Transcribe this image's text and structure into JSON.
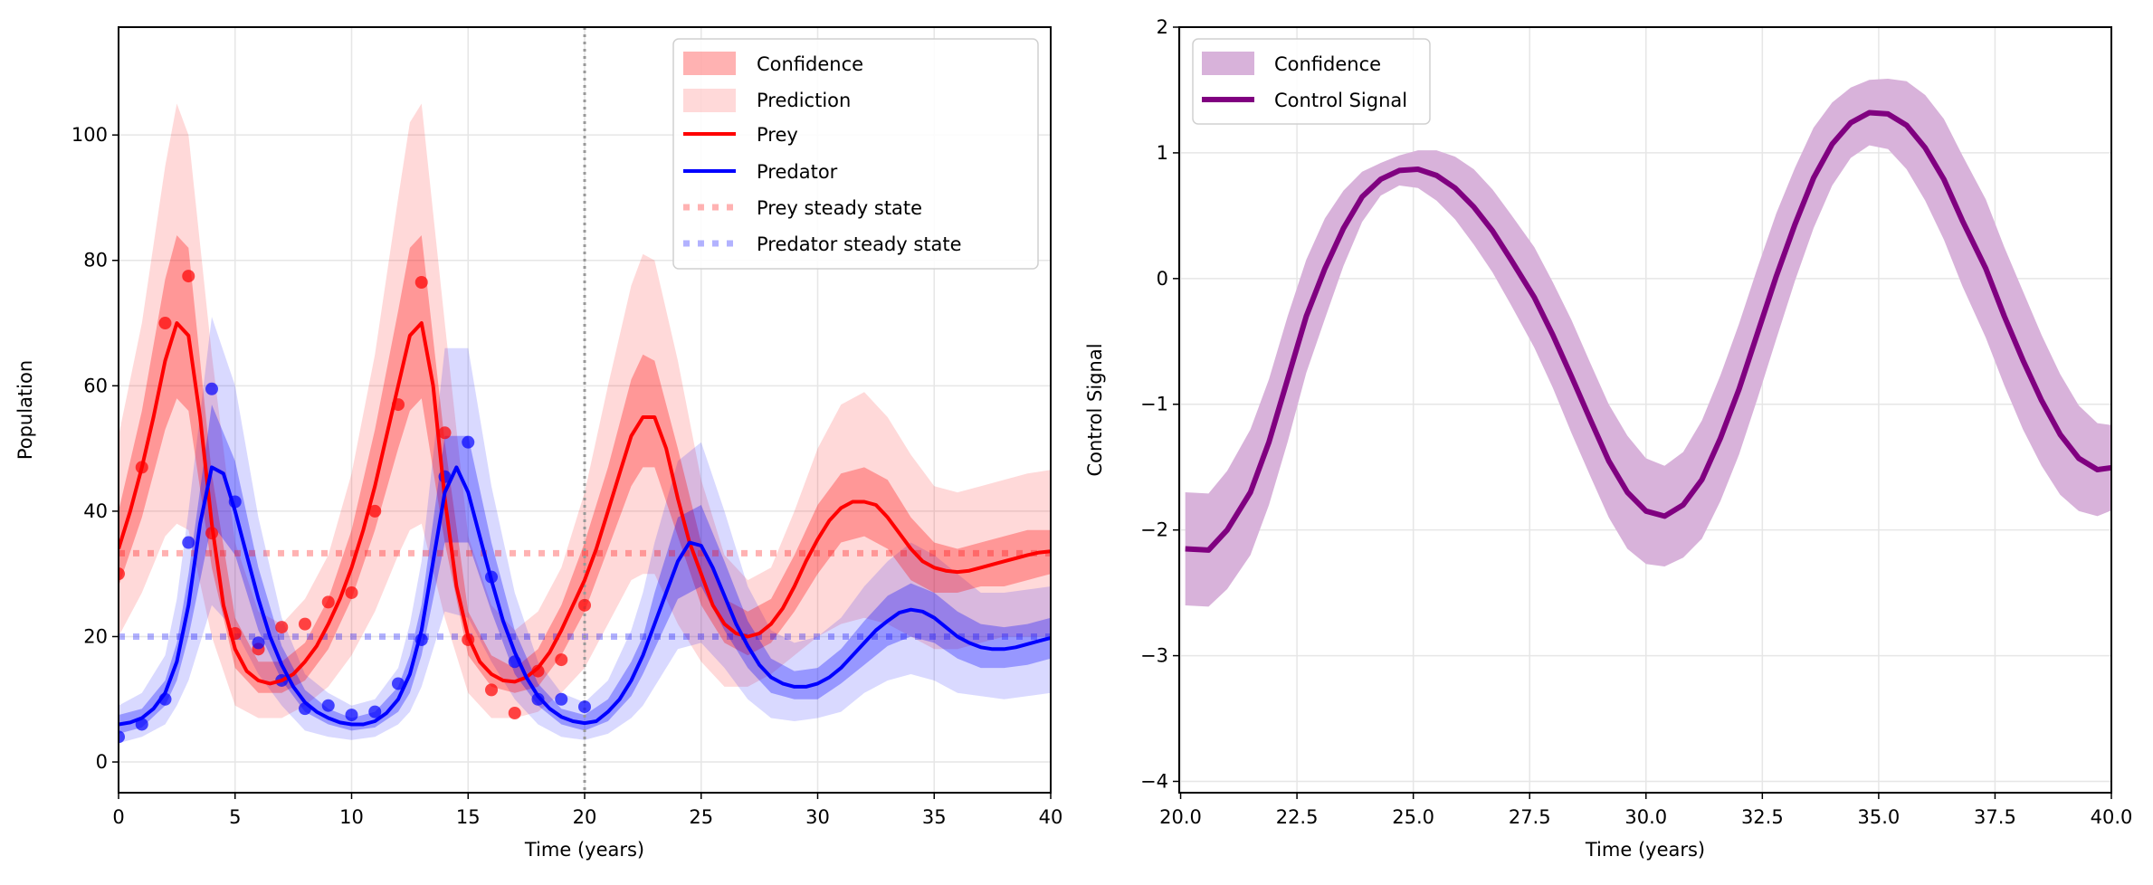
{
  "chart_data": [
    {
      "type": "line",
      "xlabel": "Time (years)",
      "ylabel": "Population",
      "xlim": [
        0,
        40
      ],
      "ylim": [
        -4.9,
        117.2
      ],
      "grid": true,
      "legend_placement": "top-right",
      "xticks": [
        "0",
        "5",
        "10",
        "15",
        "20",
        "25",
        "30",
        "35",
        "40"
      ],
      "xtick_values": [
        0,
        5,
        10,
        15,
        20,
        25,
        30,
        35,
        40
      ],
      "yticks": [
        "0",
        "20",
        "40",
        "60",
        "80",
        "100"
      ],
      "ytick_values": [
        0,
        20,
        40,
        60,
        80,
        100
      ],
      "vertical_marker": {
        "x": 20,
        "color": "#999999",
        "style": "dotted"
      },
      "legend": [
        "Confidence",
        "Prediction",
        "Prey",
        "Predator",
        "Prey steady state",
        "Predator steady state"
      ],
      "colors": {
        "prey": "#ff0000",
        "predator": "#0000ff",
        "prey_ss": "#ffb3b3",
        "predator_ss": "#b3b3ff"
      },
      "steady_states": {
        "prey": 33.3,
        "predator": 20
      },
      "t": [
        0,
        0.5,
        1,
        1.5,
        2,
        2.5,
        3,
        3.5,
        4,
        4.5,
        5,
        5.5,
        6,
        6.5,
        7,
        7.5,
        8,
        8.5,
        9,
        9.5,
        10,
        10.5,
        11,
        11.5,
        12,
        12.5,
        13,
        13.5,
        14,
        14.5,
        15,
        15.5,
        16,
        16.5,
        17,
        17.5,
        18,
        18.5,
        19,
        19.5,
        20,
        20.5,
        21,
        21.5,
        22,
        22.5,
        23,
        23.5,
        24,
        24.5,
        25,
        25.5,
        26,
        26.5,
        27,
        27.5,
        28,
        28.5,
        29,
        29.5,
        30,
        30.5,
        31,
        31.5,
        32,
        32.5,
        33,
        33.5,
        34,
        34.5,
        35,
        35.5,
        36,
        36.5,
        37,
        37.5,
        38,
        38.5,
        39,
        39.5,
        40
      ],
      "series": [
        {
          "name": "Prey",
          "values": [
            34,
            40,
            47,
            55,
            64,
            70,
            68,
            55,
            38,
            25,
            18,
            14.5,
            13,
            12.5,
            13,
            14,
            16,
            18.5,
            22,
            26,
            31,
            37,
            44,
            52,
            60,
            68,
            70,
            60,
            42,
            28,
            20,
            16,
            14,
            13,
            12.8,
            13.5,
            15,
            17.5,
            21,
            25,
            29,
            34,
            40,
            46,
            52,
            55,
            55,
            50,
            42,
            35,
            30,
            25,
            22,
            20.5,
            20,
            20.5,
            22,
            24.5,
            28,
            32,
            35.5,
            38.5,
            40.5,
            41.5,
            41.5,
            41,
            39,
            36.5,
            34,
            32,
            31,
            30.5,
            30.3,
            30.5,
            31,
            31.5,
            32,
            32.5,
            33,
            33.4,
            33.6
          ]
        },
        {
          "name": "Predator",
          "values": [
            6,
            6.3,
            7,
            8.5,
            11,
            16,
            25,
            38,
            47,
            46,
            40,
            33,
            26,
            20,
            15.5,
            12,
            9.5,
            8,
            7,
            6.3,
            6,
            6,
            6.5,
            7.8,
            10,
            14,
            21,
            32,
            43,
            47,
            43,
            36,
            29,
            22.5,
            17.5,
            13.5,
            10.5,
            8.5,
            7.2,
            6.5,
            6.2,
            6.5,
            8,
            10,
            13,
            17,
            22,
            27,
            32,
            35,
            34.5,
            31,
            26.5,
            22,
            18.5,
            15.5,
            13.5,
            12.5,
            12,
            12,
            12.5,
            13.5,
            15,
            17,
            19,
            21,
            22.5,
            23.8,
            24.3,
            24,
            23,
            21.5,
            20,
            19,
            18.3,
            18,
            18,
            18.3,
            18.8,
            19.3,
            19.8
          ]
        }
      ],
      "band_t": [
        0,
        1,
        2,
        2.5,
        3,
        4,
        5,
        6,
        7,
        8,
        9,
        10,
        11,
        12,
        12.5,
        13,
        14,
        15,
        16,
        17,
        18,
        19,
        20,
        21,
        22,
        22.5,
        23,
        24,
        25,
        26,
        27,
        28,
        29,
        30,
        31,
        32,
        33,
        34,
        35,
        36,
        37,
        38,
        39,
        40
      ],
      "bands": {
        "prey_confidence": {
          "lower": [
            28,
            39,
            53,
            58,
            56,
            31,
            15,
            11,
            11,
            13,
            18,
            26,
            37,
            50,
            56,
            58,
            35,
            17,
            12,
            11,
            12,
            17,
            24,
            34,
            44,
            47,
            47,
            36,
            25,
            19,
            17,
            19,
            24,
            30,
            35,
            36,
            34,
            29,
            27,
            27,
            28,
            28,
            29,
            30
          ],
          "upper": [
            40,
            56,
            77,
            84,
            82,
            46,
            23,
            16,
            16,
            19,
            26,
            37,
            53,
            72,
            82,
            84,
            51,
            24,
            17,
            15,
            18,
            25,
            35,
            47,
            61,
            65,
            64,
            50,
            35,
            26,
            24,
            26,
            33,
            41,
            46,
            47,
            45,
            39,
            35,
            34,
            35,
            36,
            37,
            37
          ]
        },
        "prey_prediction": {
          "lower": [
            20,
            27,
            36,
            38,
            37,
            20,
            9,
            7,
            7,
            9,
            12,
            17,
            24,
            33,
            37,
            38,
            23,
            11,
            7,
            7,
            8,
            11,
            15,
            22,
            29,
            30,
            30,
            22,
            16,
            12,
            12,
            14,
            17,
            20,
            22,
            23,
            22,
            20,
            18,
            18,
            19,
            20,
            20,
            20
          ],
          "upper": [
            52,
            70,
            95,
            105,
            100,
            65,
            35,
            24,
            22,
            26,
            33,
            46,
            65,
            90,
            102,
            105,
            70,
            36,
            25,
            21,
            24,
            31,
            43,
            60,
            76,
            81,
            80,
            64,
            45,
            33,
            29,
            31,
            40,
            50,
            57,
            59,
            55,
            49,
            44,
            43,
            44,
            45,
            46,
            46.6
          ]
        },
        "predator_confidence": {
          "lower": [
            4.5,
            5.5,
            9,
            13,
            20,
            38,
            33,
            21,
            13,
            8,
            6,
            5,
            5.5,
            8,
            11,
            17,
            35,
            35,
            24,
            14,
            9,
            6,
            5,
            6.5,
            10.5,
            14,
            18,
            26,
            28,
            21,
            15,
            11,
            10,
            10,
            12.5,
            15.5,
            18.5,
            20,
            19,
            16.5,
            15,
            15,
            15.5,
            16.5
          ],
          "upper": [
            7.5,
            8.5,
            13,
            19,
            30,
            57,
            48,
            31,
            18.5,
            11.5,
            8.5,
            7,
            8,
            12,
            17,
            25,
            52,
            52,
            35,
            21,
            12.5,
            8.5,
            7.5,
            10,
            16,
            20,
            27,
            39,
            41,
            32,
            22.5,
            16.5,
            14.5,
            15,
            18,
            22.5,
            26.5,
            28.5,
            27,
            24,
            22,
            21.5,
            22,
            23
          ]
        },
        "predator_prediction": {
          "lower": [
            3,
            4,
            6,
            9,
            13,
            25,
            21,
            14,
            9,
            5,
            4,
            3.5,
            4,
            6,
            8,
            12,
            24,
            23,
            16,
            10,
            6,
            4,
            3.5,
            4.5,
            7,
            9,
            12,
            18,
            19,
            15,
            10,
            7,
            6.5,
            7,
            8,
            11,
            13,
            14,
            13,
            11,
            10.5,
            10,
            10.5,
            11
          ],
          "upper": [
            9,
            11,
            17,
            26,
            40,
            71,
            60,
            39,
            23,
            14,
            11,
            9,
            10,
            15,
            22,
            32,
            66,
            66,
            44,
            27,
            16,
            11,
            9.5,
            13,
            21,
            27,
            35,
            48,
            51,
            40,
            28,
            21,
            19,
            20,
            23,
            28,
            32,
            35,
            33,
            30,
            27,
            27,
            27.5,
            28
          ]
        }
      },
      "observations": {
        "t": [
          0,
          1,
          2,
          3,
          4,
          5,
          6,
          7,
          8,
          9,
          10,
          11,
          12,
          13,
          14,
          15,
          16,
          17,
          18,
          19,
          20
        ],
        "prey": [
          30,
          47,
          70,
          77.5,
          36.5,
          20.5,
          18,
          21.5,
          22,
          25.5,
          27,
          40,
          57,
          76.5,
          52.5,
          19.5,
          11.5,
          7.8,
          14.5,
          16.3,
          25
        ],
        "predator": [
          4,
          6,
          10,
          35,
          59.5,
          41.5,
          19,
          13,
          8.5,
          9,
          7.5,
          8,
          12.5,
          19.5,
          45.5,
          51,
          29.5,
          16,
          10,
          10,
          8.8
        ]
      }
    },
    {
      "type": "line",
      "xlabel": "Time (years)",
      "ylabel": "Control Signal",
      "xlim": [
        19.97,
        40
      ],
      "ylim": [
        -4.09,
        2
      ],
      "grid": true,
      "legend_placement": "top-left",
      "xticks": [
        "20.0",
        "22.5",
        "25.0",
        "27.5",
        "30.0",
        "32.5",
        "35.0",
        "37.5",
        "40.0"
      ],
      "xtick_values": [
        20,
        22.5,
        25,
        27.5,
        30,
        32.5,
        35,
        37.5,
        40
      ],
      "yticks": [
        "−4",
        "−3",
        "−2",
        "−1",
        "0",
        "1",
        "2"
      ],
      "ytick_values": [
        -4,
        -3,
        -2,
        -1,
        0,
        1,
        2
      ],
      "legend": [
        "Confidence",
        "Control Signal"
      ],
      "colors": {
        "line": "#800080",
        "band": "#d8b2da"
      },
      "x": [
        20.1,
        20.6,
        21.0,
        21.5,
        21.9,
        22.3,
        22.7,
        23.1,
        23.5,
        23.9,
        24.3,
        24.7,
        25.1,
        25.5,
        25.9,
        26.3,
        26.7,
        27.1,
        27.6,
        28.0,
        28.4,
        28.8,
        29.2,
        29.6,
        30.0,
        30.4,
        30.8,
        31.2,
        31.6,
        32.0,
        32.4,
        32.8,
        33.2,
        33.6,
        34.0,
        34.4,
        34.8,
        35.2,
        35.6,
        36.0,
        36.4,
        36.8,
        37.3,
        37.7,
        38.1,
        38.5,
        38.9,
        39.3,
        39.7,
        40.1
      ],
      "series": [
        {
          "name": "Control Signal",
          "values": [
            -2.15,
            -2.16,
            -2.0,
            -1.7,
            -1.3,
            -0.8,
            -0.3,
            0.08,
            0.4,
            0.65,
            0.79,
            0.86,
            0.87,
            0.82,
            0.72,
            0.57,
            0.38,
            0.15,
            -0.15,
            -0.45,
            -0.78,
            -1.12,
            -1.45,
            -1.7,
            -1.85,
            -1.89,
            -1.8,
            -1.6,
            -1.27,
            -0.88,
            -0.43,
            0.02,
            0.43,
            0.8,
            1.07,
            1.24,
            1.32,
            1.31,
            1.22,
            1.04,
            0.79,
            0.46,
            0.08,
            -0.3,
            -0.65,
            -0.97,
            -1.24,
            -1.43,
            -1.52,
            -1.5
          ]
        }
      ],
      "confidence": {
        "lower": [
          -2.6,
          -2.61,
          -2.47,
          -2.2,
          -1.8,
          -1.3,
          -0.75,
          -0.32,
          0.1,
          0.45,
          0.66,
          0.74,
          0.72,
          0.62,
          0.47,
          0.27,
          0.05,
          -0.21,
          -0.55,
          -0.87,
          -1.23,
          -1.57,
          -1.9,
          -2.15,
          -2.27,
          -2.29,
          -2.22,
          -2.07,
          -1.77,
          -1.4,
          -0.95,
          -0.48,
          -0.02,
          0.4,
          0.74,
          0.96,
          1.06,
          1.03,
          0.87,
          0.62,
          0.31,
          -0.06,
          -0.47,
          -0.85,
          -1.2,
          -1.49,
          -1.72,
          -1.85,
          -1.89,
          -1.83
        ],
        "upper": [
          -1.7,
          -1.71,
          -1.53,
          -1.2,
          -0.8,
          -0.3,
          0.15,
          0.48,
          0.7,
          0.85,
          0.92,
          0.98,
          1.02,
          1.02,
          0.97,
          0.87,
          0.71,
          0.51,
          0.25,
          -0.03,
          -0.33,
          -0.67,
          -1.0,
          -1.25,
          -1.43,
          -1.49,
          -1.38,
          -1.13,
          -0.77,
          -0.36,
          0.09,
          0.52,
          0.88,
          1.2,
          1.4,
          1.52,
          1.58,
          1.59,
          1.57,
          1.46,
          1.27,
          0.98,
          0.63,
          0.25,
          -0.1,
          -0.45,
          -0.76,
          -1.01,
          -1.15,
          -1.17
        ]
      }
    }
  ]
}
